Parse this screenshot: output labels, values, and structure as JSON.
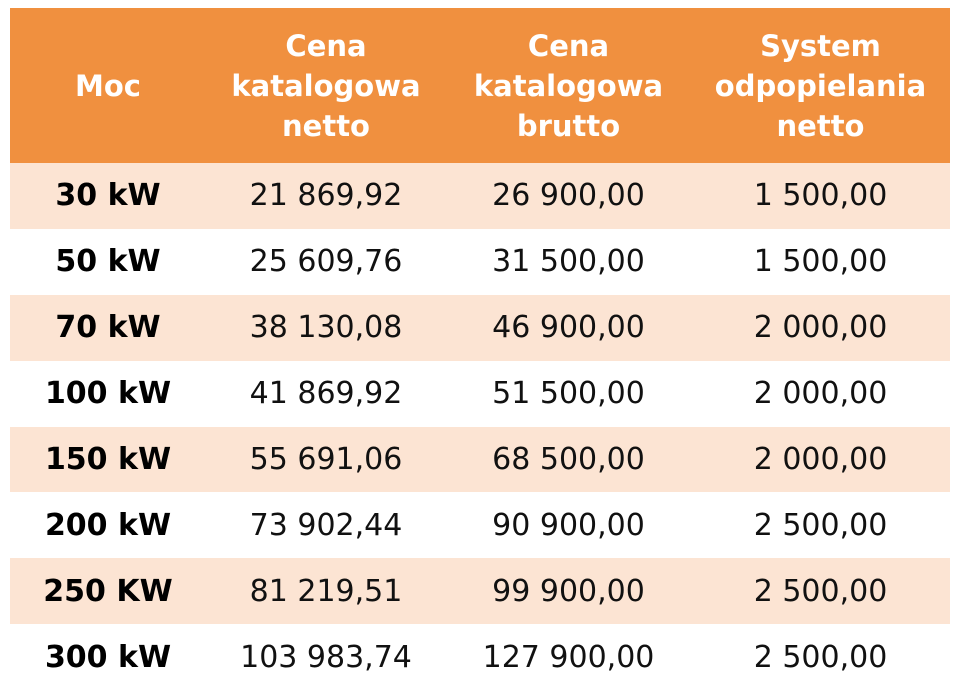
{
  "header": {
    "col_power": [
      "Moc"
    ],
    "col_net": [
      "Cena",
      "katalogowa",
      "netto"
    ],
    "col_gross": [
      "Cena",
      "katalogowa",
      "brutto"
    ],
    "col_ash": [
      "System",
      "odpopielania",
      "netto"
    ]
  },
  "rows": [
    {
      "power": "30 kW",
      "net": "21 869,92",
      "gross": "26 900,00",
      "ash": "1 500,00"
    },
    {
      "power": "50 kW",
      "net": "25 609,76",
      "gross": "31 500,00",
      "ash": "1 500,00"
    },
    {
      "power": "70 kW",
      "net": "38 130,08",
      "gross": "46 900,00",
      "ash": "2 000,00"
    },
    {
      "power": "100 kW",
      "net": "41 869,92",
      "gross": "51 500,00",
      "ash": "2 000,00"
    },
    {
      "power": "150 kW",
      "net": "55 691,06",
      "gross": "68 500,00",
      "ash": "2 000,00"
    },
    {
      "power": "200 kW",
      "net": "73 902,44",
      "gross": "90 900,00",
      "ash": "2 500,00"
    },
    {
      "power": "250 KW",
      "net": "81 219,51",
      "gross": "99 900,00",
      "ash": "2 500,00"
    },
    {
      "power": "300 kW",
      "net": "103 983,74",
      "gross": "127 900,00",
      "ash": "2 500,00"
    }
  ],
  "colors": {
    "header_bg": "#f0903f",
    "row_odd_bg": "#fce4d3",
    "row_even_bg": "#ffffff"
  }
}
